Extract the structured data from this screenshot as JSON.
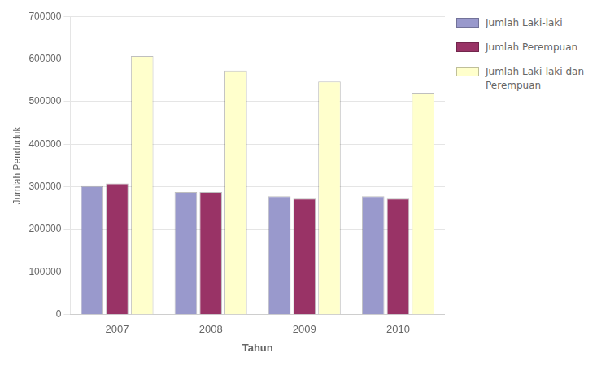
{
  "chart_data": {
    "type": "bar",
    "categories": [
      "2007",
      "2008",
      "2009",
      "2010"
    ],
    "series": [
      {
        "name": "Jumlah Laki-laki",
        "color": "#9999CC",
        "values": [
          302000,
          288000,
          278000,
          278000
        ]
      },
      {
        "name": "Jumlah Perempuan",
        "color": "#993366",
        "values": [
          308000,
          288000,
          272000,
          272000
        ]
      },
      {
        "name": "Jumlah Laki-laki dan\nPerempuan",
        "color": "#FFFFCC",
        "values": [
          607000,
          573000,
          547000,
          521000
        ]
      }
    ],
    "xlabel": "Tahun",
    "ylabel": "Jumlah Penduduk",
    "ylim": [
      0,
      700000
    ],
    "yticks": [
      0,
      100000,
      200000,
      300000,
      400000,
      500000,
      600000,
      700000
    ],
    "grid": true,
    "legend": "right"
  }
}
